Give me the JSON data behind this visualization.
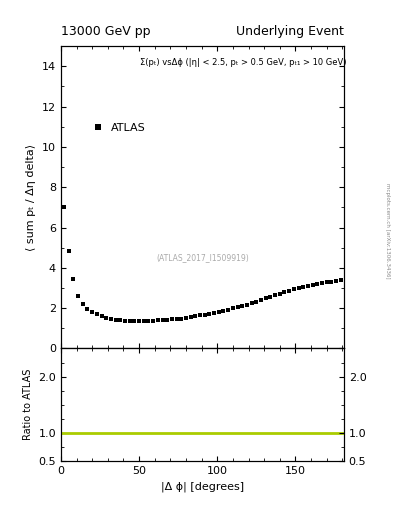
{
  "title_left": "13000 GeV pp",
  "title_right": "Underlying Event",
  "annotation": "Σ(pₜ) vsΔϕ (|η| < 2.5, pₜ > 0.5 GeV, pₜ₁ > 10 GeV)",
  "watermark": "(ATLAS_2017_I1509919)",
  "legend_label": "ATLAS",
  "ylabel_main": "⟨ sum pₜ / Δη delta⟩",
  "ylabel_ratio": "Ratio to ATLAS",
  "xlabel": "|Δ ϕ| [degrees]",
  "ylim_main": [
    0,
    15
  ],
  "ylim_ratio": [
    0.5,
    2.5
  ],
  "yticks_main": [
    0,
    2,
    4,
    6,
    8,
    10,
    12,
    14
  ],
  "yticks_ratio": [
    0.5,
    1,
    2
  ],
  "xticks": [
    0,
    50,
    100,
    150
  ],
  "xlim": [
    0,
    181
  ],
  "ratio_line_y": 1.0,
  "ratio_line_color": "#aacc00",
  "marker_color": "#000000",
  "marker_size": 3,
  "dphi_values": [
    2,
    5,
    8,
    11,
    14,
    17,
    20,
    23,
    26,
    29,
    32,
    35,
    38,
    41,
    44,
    47,
    50,
    53,
    56,
    59,
    62,
    65,
    68,
    71,
    74,
    77,
    80,
    83,
    86,
    89,
    92,
    95,
    98,
    101,
    104,
    107,
    110,
    113,
    116,
    119,
    122,
    125,
    128,
    131,
    134,
    137,
    140,
    143,
    146,
    149,
    152,
    155,
    158,
    161,
    164,
    167,
    170,
    173,
    176,
    179
  ],
  "sumpt_values": [
    7.0,
    4.85,
    3.45,
    2.6,
    2.2,
    1.95,
    1.8,
    1.7,
    1.6,
    1.52,
    1.46,
    1.43,
    1.4,
    1.38,
    1.37,
    1.36,
    1.36,
    1.36,
    1.37,
    1.38,
    1.39,
    1.4,
    1.42,
    1.44,
    1.46,
    1.48,
    1.52,
    1.56,
    1.6,
    1.64,
    1.68,
    1.73,
    1.78,
    1.83,
    1.88,
    1.93,
    1.99,
    2.05,
    2.11,
    2.18,
    2.25,
    2.32,
    2.4,
    2.48,
    2.56,
    2.63,
    2.7,
    2.78,
    2.86,
    2.93,
    3.0,
    3.05,
    3.1,
    3.15,
    3.2,
    3.24,
    3.28,
    3.32,
    3.35,
    3.38
  ],
  "mcplots_text": "mcplots.cern.ch [arXiv:1306.3436]"
}
